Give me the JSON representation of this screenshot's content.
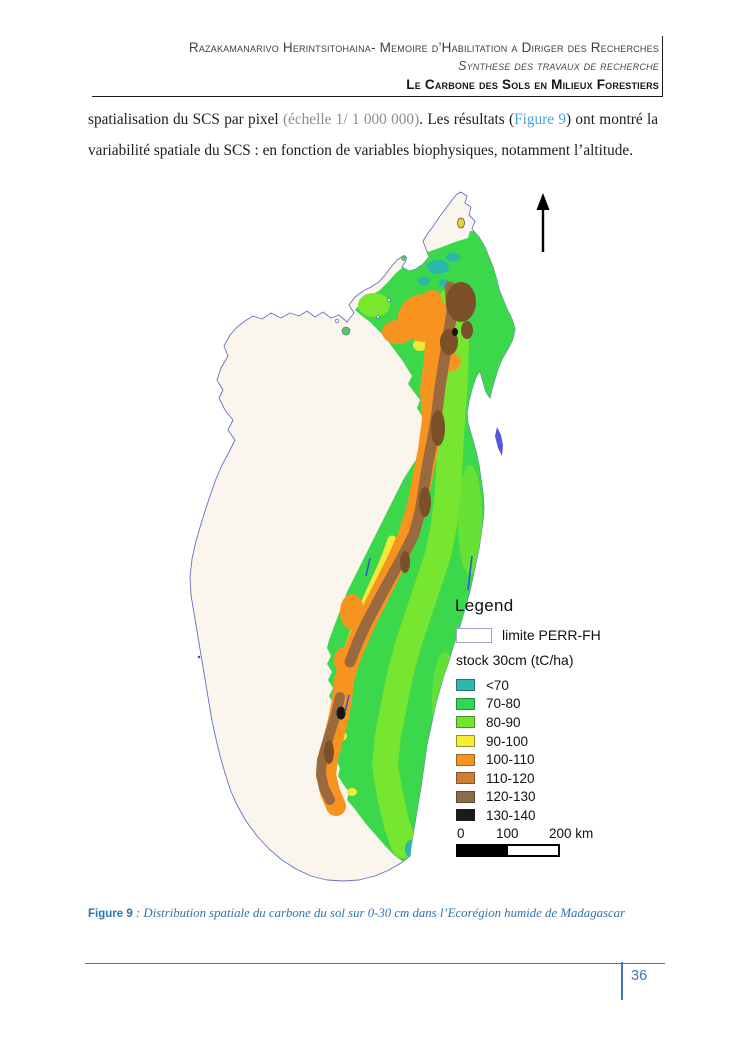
{
  "header": {
    "line1": "Razakamanarivo Herintsitohaina- Memoire d’Habilitation a Diriger des Recherches",
    "line2": "Synthese des travaux de recherche",
    "line3": "Le Carbone des Sols en Milieux Forestiers"
  },
  "body": {
    "p1_parts": {
      "0": "spatialisation du SCS par pixel ",
      "1": "(échelle 1/ 1 000 000)",
      "2": ". Les résultats (",
      "3": "Figure 9",
      "4": ") ont montré la"
    },
    "p2": "variabilité spatiale du SCS : en fonction de variables biophysiques, notamment l’altitude."
  },
  "map": {
    "legend": {
      "title": "Legend",
      "boundary_label": "limite PERR-FH",
      "subtitle": "stock 30cm (tC/ha)",
      "classes": [
        {
          "label": "<70",
          "color": "#2cb8ad"
        },
        {
          "label": "70-80",
          "color": "#2ed955"
        },
        {
          "label": "80-90",
          "color": "#6fe52f"
        },
        {
          "label": "90-100",
          "color": "#f5ec35"
        },
        {
          "label": "100-110",
          "color": "#f79421"
        },
        {
          "label": "110-120",
          "color": "#cd7f35"
        },
        {
          "label": "120-130",
          "color": "#8c6b4a"
        },
        {
          "label": "130-140",
          "color": "#1a1a1a"
        }
      ],
      "scale_ticks": {
        "0": "0",
        "1": "100",
        "2": "200 km"
      }
    }
  },
  "caption": {
    "label": "Figure 9",
    "separator": " : ",
    "text": "Distribution spatiale du carbone du sol sur 0-30 cm dans l’Ecorégion humide de Madagascar"
  },
  "footer": {
    "page_number": "36"
  },
  "colors": {
    "accent_blue": "#4472C4",
    "caption_blue": "#2E74B5",
    "reference_link_blue": "#4AA3DC",
    "muted_gray": "#8C8C8C",
    "island_outline": "#6A6FC0",
    "island_fill": "#FAF5ED"
  }
}
